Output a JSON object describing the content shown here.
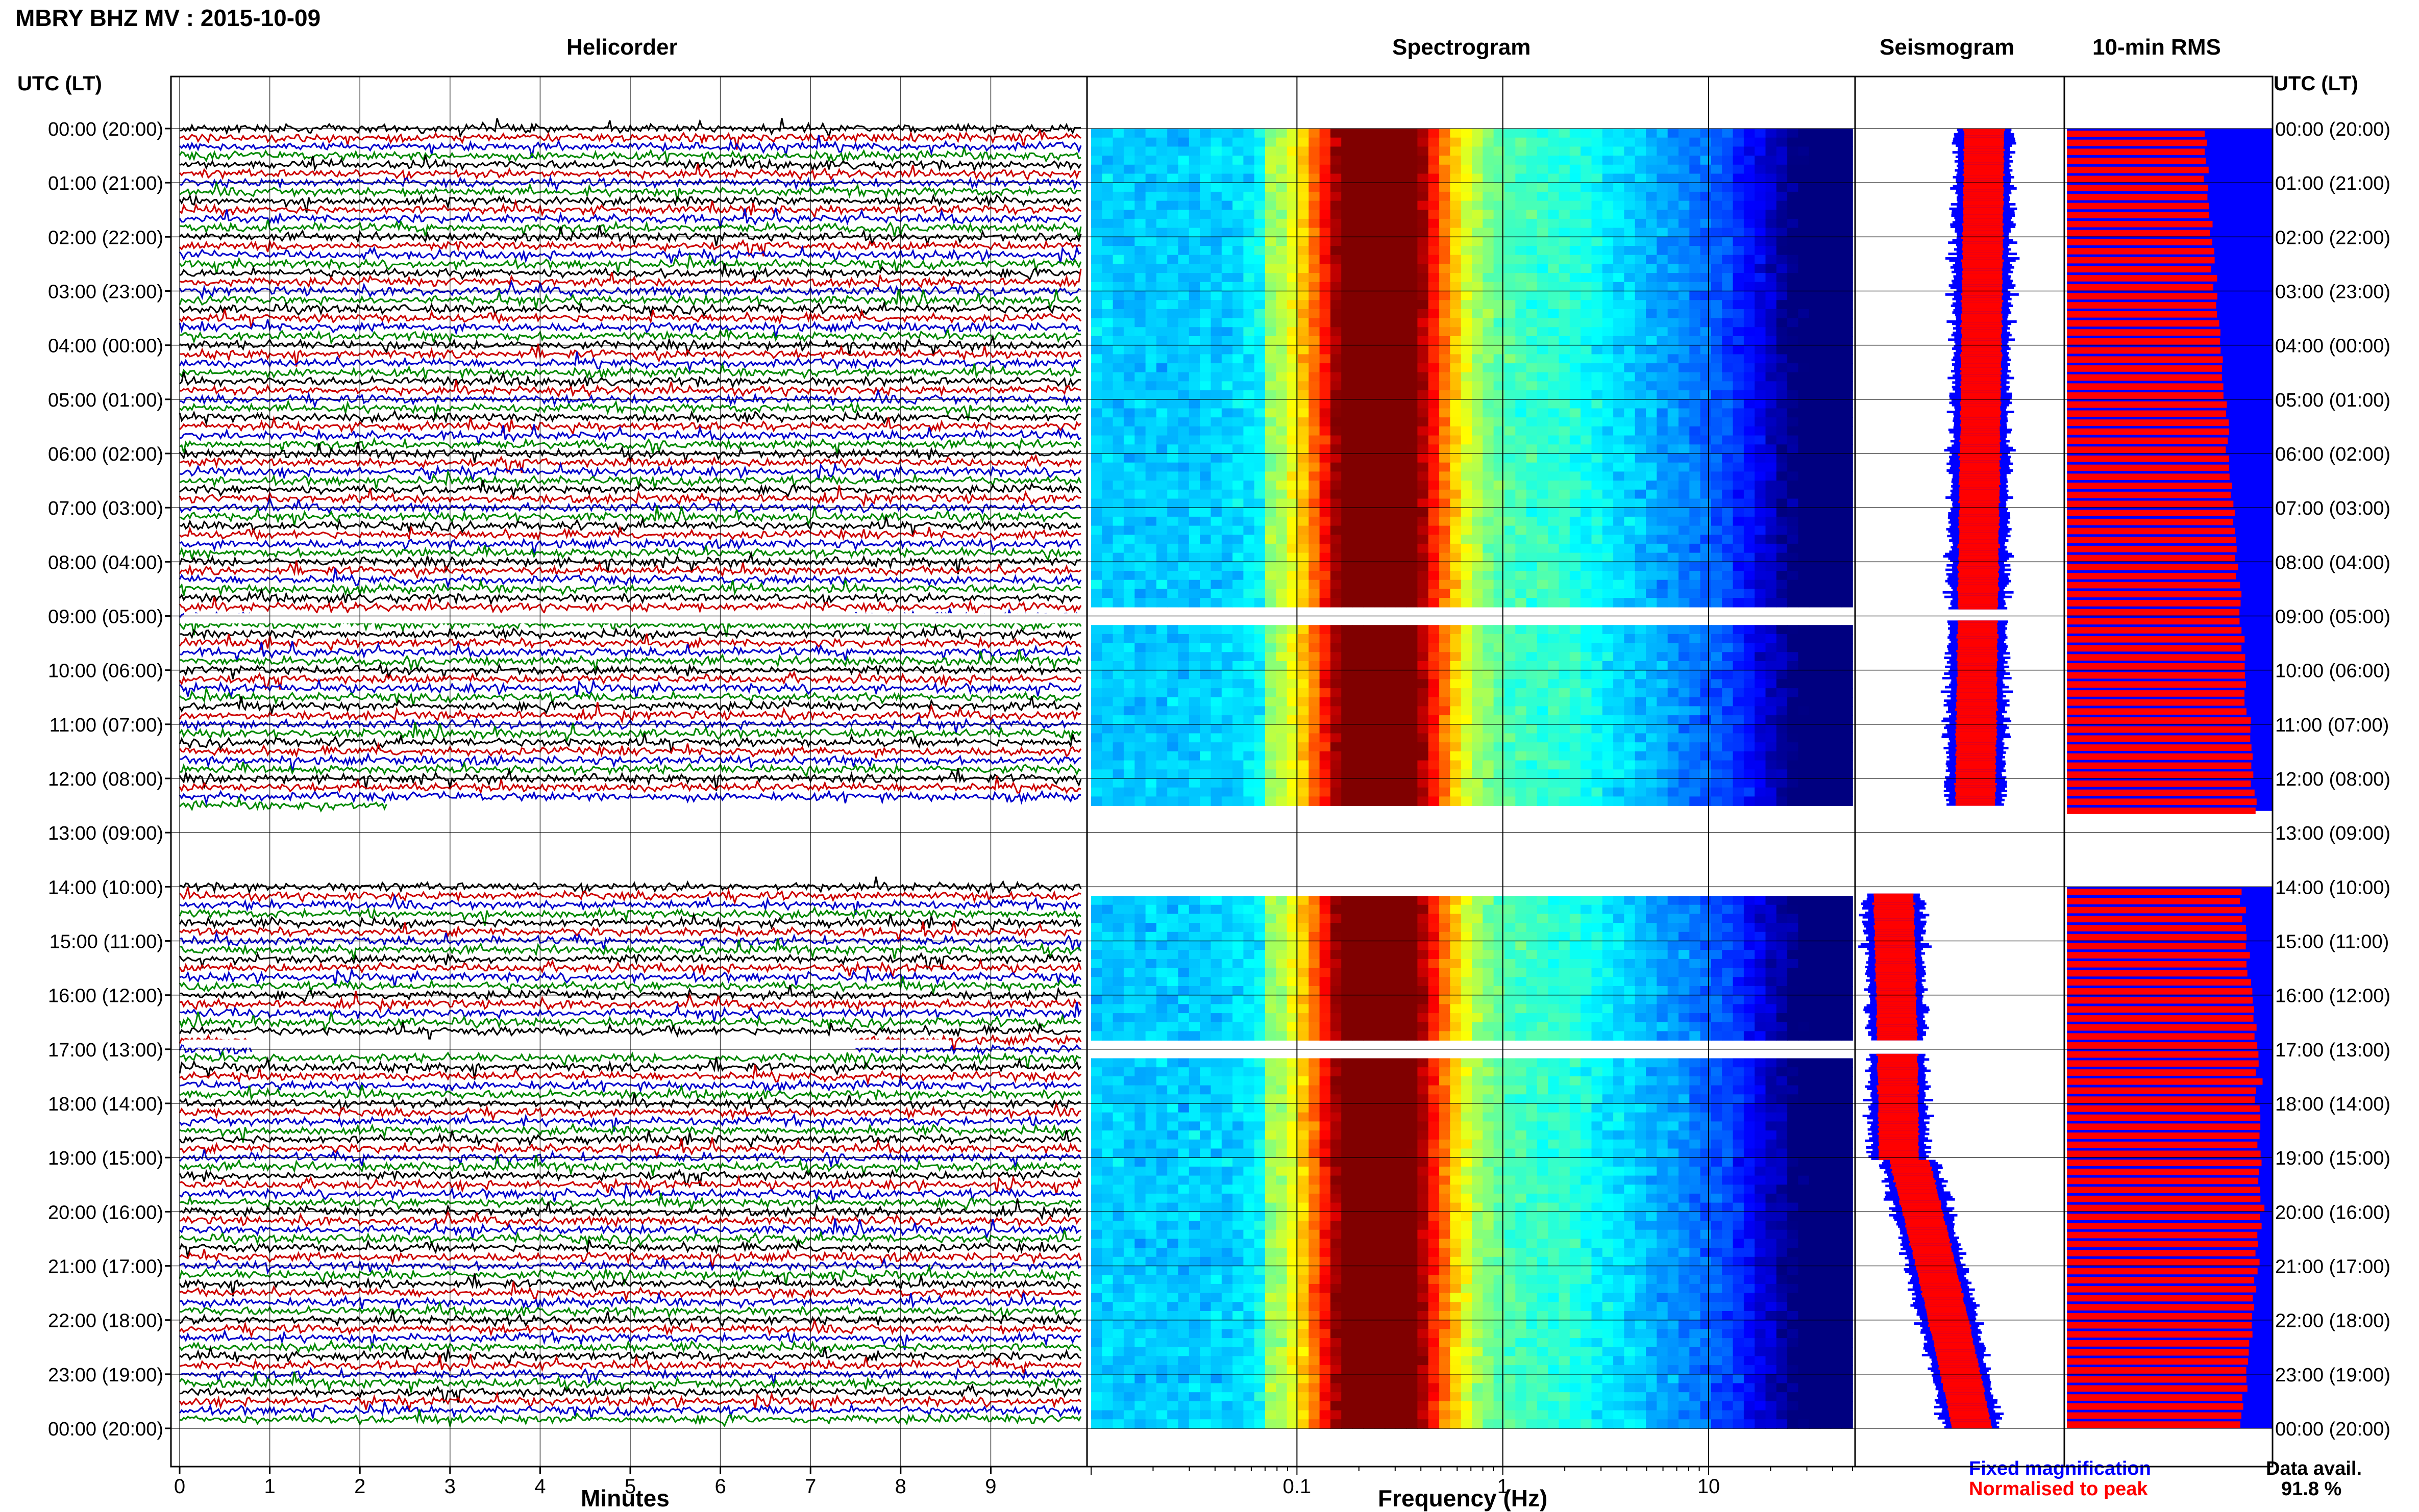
{
  "page": {
    "title": "MBRY BHZ MV : 2015-10-09",
    "left_axis_header": "UTC (LT)",
    "right_axis_header": "UTC (LT)"
  },
  "panels": {
    "helicorder": {
      "title": "Helicorder",
      "xlabel": "Minutes"
    },
    "spectrogram": {
      "title": "Spectrogram",
      "xlabel": "Frequency (Hz)"
    },
    "seismogram": {
      "title": "Seismogram"
    },
    "rms": {
      "title": "10-min RMS"
    }
  },
  "legend": {
    "fixed": "Fixed magnification",
    "normalised": "Normalised to peak",
    "fixed_color": "#0000ff",
    "normalised_color": "#ff0000",
    "data_avail_label": "Data avail.",
    "data_avail_value": "91.8 %"
  },
  "colors": {
    "trace_colors": [
      "#000000",
      "#cc0000",
      "#0000cc",
      "#008800"
    ],
    "rms_fill": "#0000ff",
    "rms_normalised": "#ff0000"
  },
  "chart_data": [
    {
      "type": "line",
      "name": "helicorder",
      "title": "Helicorder",
      "xlabel": "Minutes",
      "xlim": [
        0,
        10
      ],
      "x_ticks": [
        0,
        1,
        2,
        3,
        4,
        5,
        6,
        7,
        8,
        9
      ],
      "y_ticks_left": [
        "00:00 (20:00)",
        "01:00 (21:00)",
        "02:00 (22:00)",
        "03:00 (23:00)",
        "04:00 (00:00)",
        "05:00 (01:00)",
        "06:00 (02:00)",
        "07:00 (03:00)",
        "08:00 (04:00)",
        "09:00 (05:00)",
        "10:00 (06:00)",
        "11:00 (07:00)",
        "12:00 (08:00)",
        "13:00 (09:00)",
        "14:00 (10:00)",
        "15:00 (11:00)",
        "16:00 (12:00)",
        "17:00 (13:00)",
        "18:00 (14:00)",
        "19:00 (15:00)",
        "20:00 (16:00)",
        "21:00 (17:00)",
        "22:00 (18:00)",
        "23:00 (19:00)",
        "00:00 (20:00)"
      ],
      "line_minutes": 10,
      "lines_per_hour": 6,
      "data_start_hours": [
        0,
        14
      ],
      "data_end_hours": [
        12.6,
        24
      ],
      "gaps_hours": [
        [
          8.85,
          9.05
        ],
        [
          16.8,
          17.05
        ]
      ]
    },
    {
      "type": "heatmap",
      "name": "spectrogram",
      "title": "Spectrogram",
      "xlabel": "Frequency (Hz)",
      "x_scale": "log",
      "xlim": [
        0.01,
        50
      ],
      "x_tick_labels": [
        "0.1",
        "1",
        "10"
      ],
      "x_tick_values": [
        0.1,
        1,
        10
      ],
      "peak_frequency_hz": 0.25,
      "data_ranges_hours": [
        [
          0,
          8.85
        ],
        [
          9.2,
          12.5
        ],
        [
          14.2,
          16.8
        ],
        [
          17.1,
          24
        ]
      ]
    },
    {
      "type": "area",
      "name": "seismogram",
      "title": "Seismogram",
      "series": [
        {
          "name": "Fixed magnification",
          "color": "#0000ff"
        },
        {
          "name": "Normalised to peak",
          "color": "#ff0000"
        }
      ],
      "data_ranges_hours": [
        [
          0,
          8.85
        ],
        [
          9.05,
          12.5
        ],
        [
          14.1,
          16.8
        ],
        [
          17.05,
          24
        ]
      ]
    },
    {
      "type": "bar",
      "name": "rms",
      "title": "10-min RMS",
      "orientation": "horizontal",
      "interval_minutes": 10,
      "data_ranges_hours": [
        [
          0,
          12.6
        ],
        [
          14,
          24
        ]
      ],
      "y_ticks_right": [
        "00:00 (20:00)",
        "01:00 (21:00)",
        "02:00 (22:00)",
        "03:00 (23:00)",
        "04:00 (00:00)",
        "05:00 (01:00)",
        "06:00 (02:00)",
        "07:00 (03:00)",
        "08:00 (04:00)",
        "09:00 (05:00)",
        "10:00 (06:00)",
        "11:00 (07:00)",
        "12:00 (08:00)",
        "13:00 (09:00)",
        "14:00 (10:00)",
        "15:00 (11:00)",
        "16:00 (12:00)",
        "17:00 (13:00)",
        "18:00 (14:00)",
        "19:00 (15:00)",
        "20:00 (16:00)",
        "21:00 (17:00)",
        "22:00 (18:00)",
        "23:00 (19:00)",
        "00:00 (20:00)"
      ]
    }
  ]
}
